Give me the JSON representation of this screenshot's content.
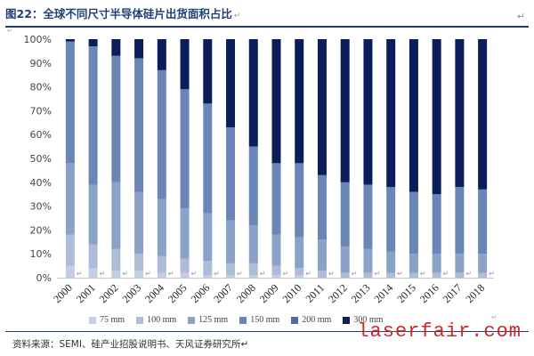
{
  "header": {
    "title": "图22：全球不同尺寸半导体硅片出货面积占比",
    "title_mark": "↵",
    "corner_mark": "↵",
    "left_mark": "↵"
  },
  "footer": {
    "source": "资料来源：SEMI、硅产业招股说明书、天风证券研究所↵",
    "legend_end_mark": "↵",
    "watermark": "laserfair.com"
  },
  "colors": {
    "75 mm": "#c3cee2",
    "100 mm": "#aebcd8",
    "125 mm": "#8ba2c8",
    "150 mm": "#6a86b6",
    "200 mm": "#4e6ca4",
    "300 mm": "#0b1e5b",
    "title": "#1f3f77",
    "watermark": "#cc2a2a"
  },
  "chart_data": {
    "type": "bar",
    "stacked": true,
    "percent": true,
    "title": "",
    "xlabel": "",
    "ylabel": "",
    "ylim": [
      0,
      100
    ],
    "yticks": [
      "0%",
      "10%",
      "20%",
      "30%",
      "40%",
      "50%",
      "60%",
      "70%",
      "80%",
      "90%",
      "100%"
    ],
    "categories": [
      "2000",
      "2001",
      "2002",
      "2003",
      "2004",
      "2005",
      "2006",
      "2007",
      "2008",
      "2009",
      "2010",
      "2011",
      "2012",
      "2013",
      "2014",
      "2015",
      "2016",
      "2017",
      "2018"
    ],
    "series": [
      {
        "name": "75 mm",
        "values": [
          5,
          4,
          3,
          3,
          2,
          2,
          1,
          1,
          1,
          1,
          1,
          0,
          0,
          0,
          0,
          0,
          0,
          0,
          0
        ]
      },
      {
        "name": "100 mm",
        "values": [
          13,
          10,
          9,
          7,
          7,
          6,
          6,
          5,
          5,
          4,
          3,
          3,
          2,
          2,
          2,
          2,
          2,
          2,
          2
        ]
      },
      {
        "name": "125 mm",
        "values": [
          30,
          25,
          28,
          26,
          24,
          21,
          20,
          18,
          16,
          13,
          13,
          13,
          11,
          10,
          9,
          8,
          8,
          8,
          8
        ]
      },
      {
        "name": "150 mm",
        "values": [
          51,
          58,
          53,
          56,
          54,
          50,
          46,
          39,
          33,
          30,
          31,
          27,
          27,
          27,
          27,
          26,
          25,
          28,
          27
        ]
      },
      {
        "name": "200 mm",
        "values": [
          0,
          0,
          0,
          0,
          0,
          0,
          0,
          0,
          0,
          0,
          0,
          0,
          0,
          0,
          0,
          0,
          0,
          0,
          0
        ]
      },
      {
        "name": "300 mm",
        "values": [
          1,
          3,
          7,
          8,
          13,
          21,
          27,
          37,
          45,
          52,
          52,
          57,
          60,
          61,
          62,
          64,
          65,
          62,
          63
        ]
      }
    ],
    "legend_position": "bottom",
    "grid": false
  }
}
